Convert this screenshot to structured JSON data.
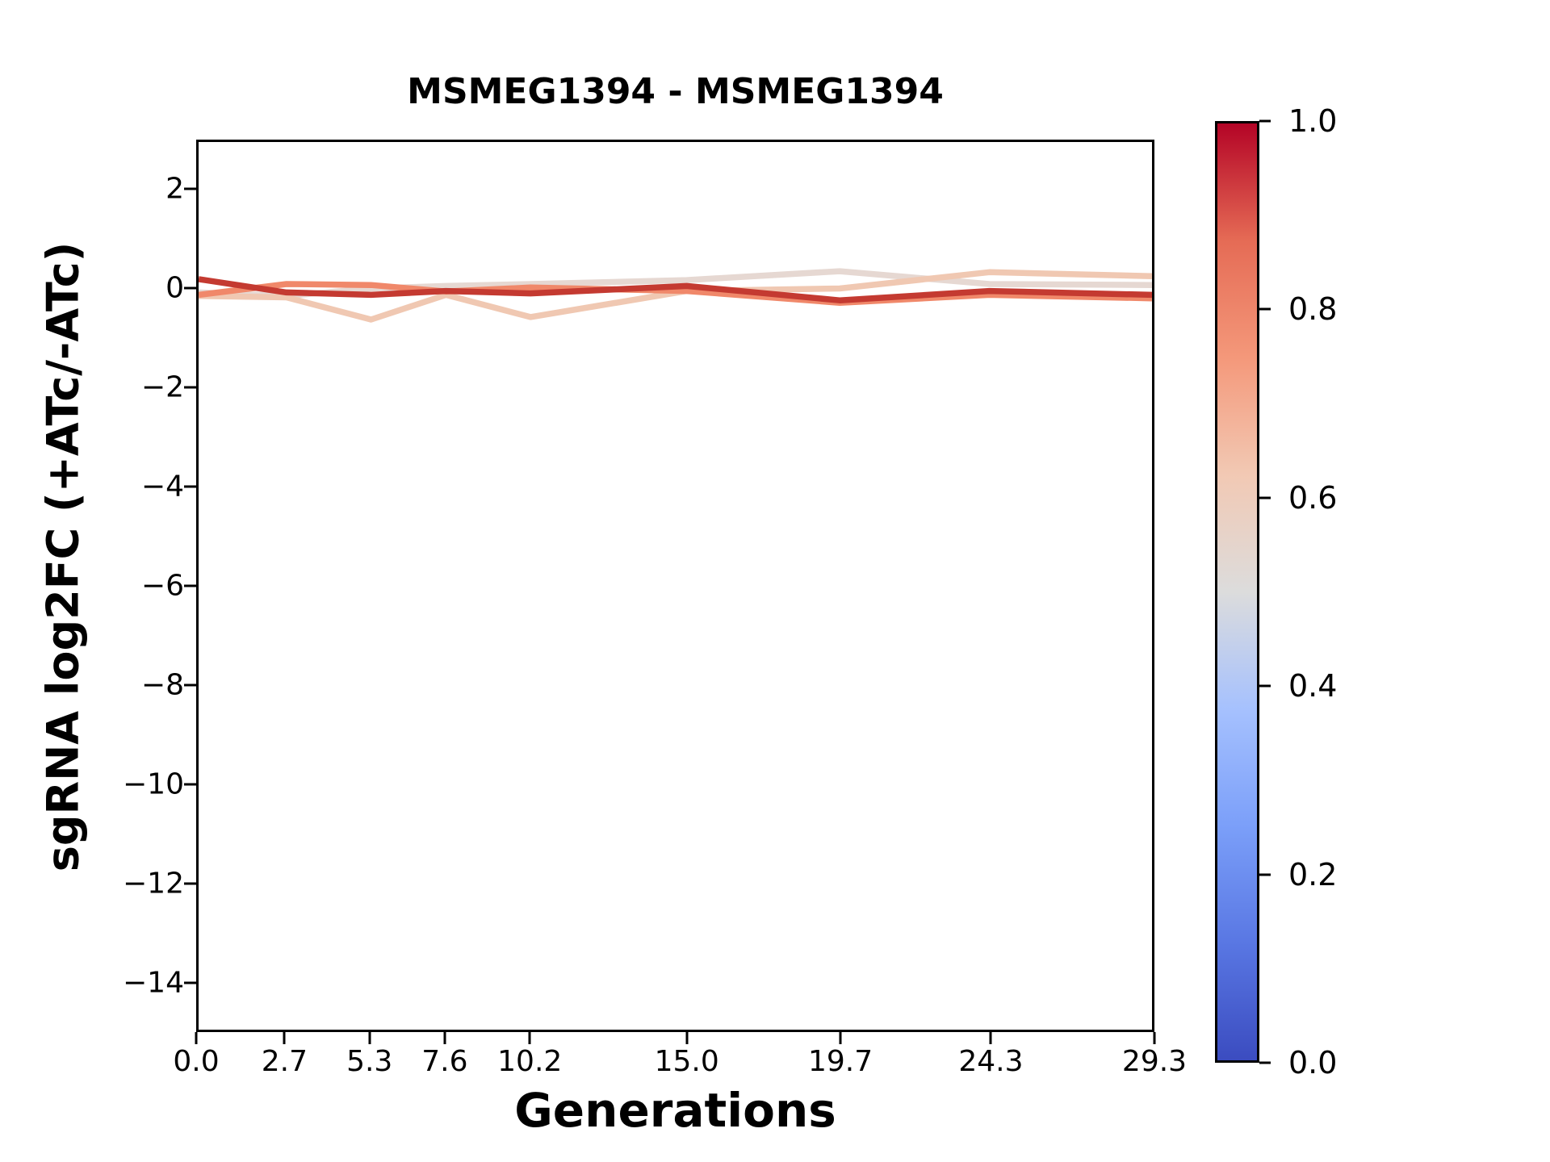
{
  "chart_data": {
    "type": "line",
    "title": "MSMEG1394 - MSMEG1394",
    "xlabel": "Generations",
    "ylabel": "sgRNA log2FC (+ATc/-ATc)",
    "x": [
      0.0,
      2.7,
      5.3,
      7.6,
      10.2,
      15.0,
      19.7,
      24.3,
      29.3
    ],
    "xlim": [
      0.0,
      29.3
    ],
    "ylim": [
      -15,
      3
    ],
    "grid": false,
    "xticks": [
      0.0,
      2.7,
      5.3,
      7.6,
      10.2,
      15.0,
      19.7,
      24.3,
      29.3
    ],
    "xtick_labels": [
      "0.0",
      "2.7",
      "5.3",
      "7.6",
      "10.2",
      "15.0",
      "19.7",
      "24.3",
      "29.3"
    ],
    "ytick_values": [
      2,
      0,
      -2,
      -4,
      -6,
      -8,
      -10,
      -12,
      -14
    ],
    "ytick_labels": [
      "2",
      "0",
      "−2",
      "−4",
      "−6",
      "−8",
      "−10",
      "−12",
      "−14"
    ],
    "series": [
      {
        "name": "sgrna-line-lightgray",
        "color": "#e6d8d2",
        "approx_cmap_value": 0.55,
        "values": [
          -0.05,
          -0.12,
          0.03,
          0.08,
          0.12,
          0.2,
          0.38,
          0.12,
          0.1
        ]
      },
      {
        "name": "sgrna-line-peach",
        "color": "#f0c8b2",
        "approx_cmap_value": 0.63,
        "values": [
          -0.12,
          -0.15,
          -0.6,
          -0.1,
          -0.55,
          -0.02,
          0.03,
          0.36,
          0.28
        ]
      },
      {
        "name": "sgrna-line-salmon",
        "color": "#f0886a",
        "approx_cmap_value": 0.8,
        "values": [
          -0.1,
          0.12,
          0.1,
          -0.03,
          0.05,
          -0.02,
          -0.26,
          -0.1,
          -0.17
        ]
      },
      {
        "name": "sgrna-line-darkred",
        "color": "#c43a31",
        "approx_cmap_value": 0.95,
        "values": [
          0.22,
          -0.05,
          -0.1,
          -0.02,
          -0.07,
          0.08,
          -0.21,
          -0.02,
          -0.1
        ]
      }
    ],
    "colorbar": {
      "colormap": "coolwarm",
      "tick_labels_top_to_bottom": [
        "1.0",
        "0.8",
        "0.6",
        "0.4",
        "0.2",
        "0.0"
      ],
      "tick_fractions_top_to_bottom": [
        1.0,
        0.8,
        0.6,
        0.4,
        0.2,
        0.0
      ],
      "gradient_stops_bottom_to_top": [
        "#3b4cc0",
        "#5977e3",
        "#7b9ff9",
        "#a6c1fe",
        "#dcdcdc",
        "#f2c9b4",
        "#f4987a",
        "#e56b55",
        "#b40426"
      ]
    }
  }
}
